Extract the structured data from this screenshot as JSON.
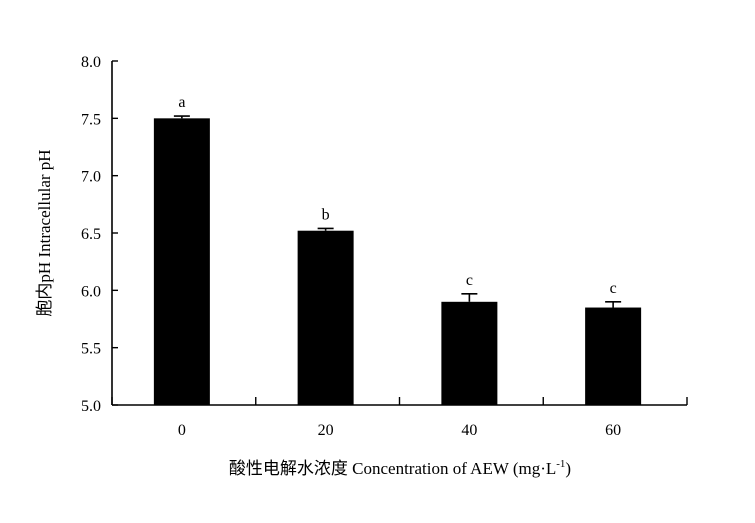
{
  "chart_data": {
    "type": "bar",
    "categories": [
      "0",
      "20",
      "40",
      "60"
    ],
    "values": [
      7.5,
      6.52,
      5.9,
      5.85
    ],
    "errors": [
      0.02,
      0.02,
      0.07,
      0.05
    ],
    "significance": [
      "a",
      "b",
      "c",
      "c"
    ],
    "ylim": [
      5.0,
      8.0
    ],
    "yticks": [
      "5.0",
      "5.5",
      "6.0",
      "6.5",
      "7.0",
      "7.5",
      "8.0"
    ],
    "ylabel": "胞内pH Intracellular pH",
    "xlabel": {
      "main": "酸性电解水浓度 Concentration of AEW (mg·L",
      "sup": "-1",
      "tail": ")"
    },
    "grid": false,
    "bar_color": "#000000"
  }
}
